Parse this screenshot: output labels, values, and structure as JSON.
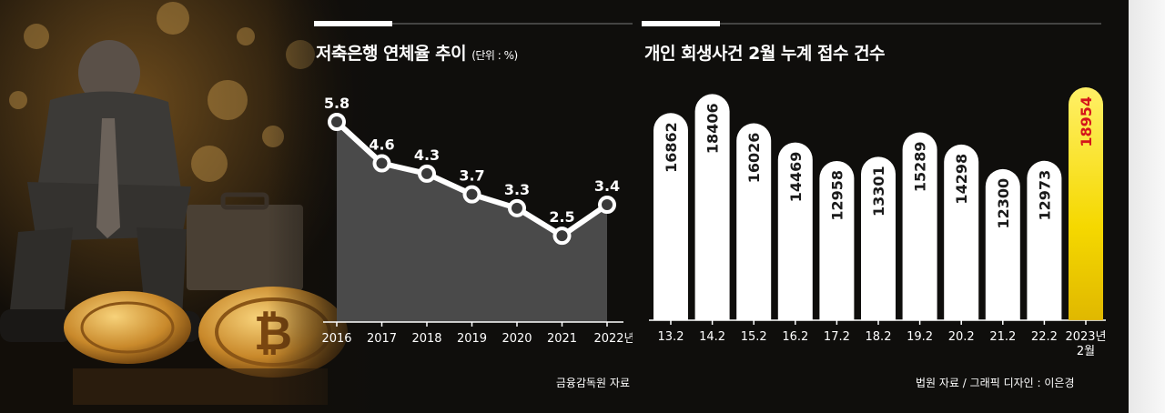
{
  "left_chart": {
    "title": "저축은행 연체율 추이",
    "unit": "(단위 : %)",
    "source": "금융감독원 자료"
  },
  "right_chart": {
    "title": "개인 회생사건 2월 누계 접수 건수",
    "source": "법원 자료 / 그래픽 디자인 : 이은경"
  },
  "colors": {
    "background": "#0f0e0c",
    "highlight_bar": "#f5d800",
    "highlight_text": "#d4141a",
    "bar": "#ffffff"
  },
  "chart_data": [
    {
      "type": "area",
      "title": "저축은행 연체율 추이",
      "unit": "(단위 : %)",
      "categories": [
        "2016",
        "2017",
        "2018",
        "2019",
        "2020",
        "2021",
        "2022년"
      ],
      "values": [
        5.8,
        4.6,
        4.3,
        3.7,
        3.3,
        2.5,
        3.4
      ],
      "value_labels": [
        "5.8",
        "4.6",
        "4.3",
        "3.7",
        "3.3",
        "2.5",
        "3.4"
      ],
      "grid": false
    },
    {
      "type": "bar",
      "title": "개인 회생사건 2월 누계 접수 건수",
      "categories": [
        "13.2",
        "14.2",
        "15.2",
        "16.2",
        "17.2",
        "18.2",
        "19.2",
        "20.2",
        "21.2",
        "22.2",
        "2023년\n2월"
      ],
      "category_lines": [
        [
          "13.2"
        ],
        [
          "14.2"
        ],
        [
          "15.2"
        ],
        [
          "16.2"
        ],
        [
          "17.2"
        ],
        [
          "18.2"
        ],
        [
          "19.2"
        ],
        [
          "20.2"
        ],
        [
          "21.2"
        ],
        [
          "22.2"
        ],
        [
          "2023년",
          "2월"
        ]
      ],
      "values": [
        16862,
        18406,
        16026,
        14469,
        12958,
        13301,
        15289,
        14298,
        12300,
        12973,
        18954
      ],
      "highlight_index": 10,
      "grid": false
    }
  ]
}
